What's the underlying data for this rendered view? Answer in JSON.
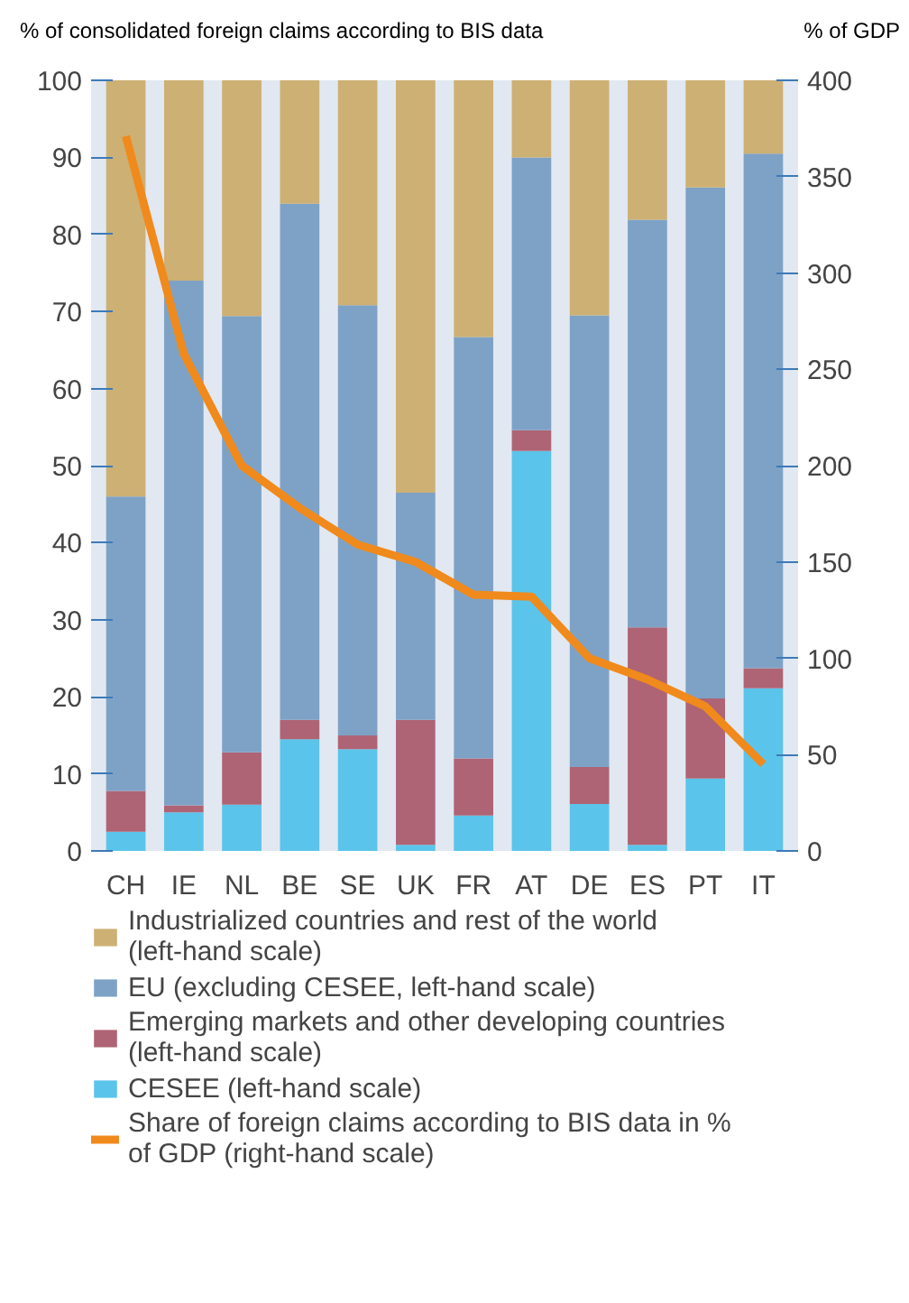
{
  "chart_data": {
    "type": "bar",
    "stacked": true,
    "ylabel": "% of consolidated foreign claims according to BIS data",
    "y2label": "% of GDP",
    "categories": [
      "CH",
      "IE",
      "NL",
      "BE",
      "SE",
      "UK",
      "FR",
      "AT",
      "DE",
      "ES",
      "PT",
      "IT"
    ],
    "series": [
      {
        "name": "CESEE (left-hand scale)",
        "color": "#5bc4ea",
        "values": [
          2.5,
          5,
          6,
          14.5,
          13.2,
          0.8,
          4.6,
          51.9,
          6.1,
          0.8,
          9.4,
          21.1
        ]
      },
      {
        "name": "Emerging markets and other developing countries (left-hand scale)",
        "color": "#ae6474",
        "values": [
          5.3,
          0.9,
          6.8,
          2.5,
          1.8,
          16.2,
          7.4,
          2.7,
          4.8,
          28.2,
          10.4,
          2.6
        ]
      },
      {
        "name": "EU (excluding CESEE, left-hand scale)",
        "color": "#7ea2c6",
        "values": [
          38.2,
          68.1,
          56.6,
          67,
          55.8,
          29.5,
          54.7,
          35.4,
          58.6,
          52.9,
          66.3,
          66.8
        ]
      },
      {
        "name": "Industrialized countries and rest of the world (left-hand scale)",
        "color": "#cdb073",
        "values": [
          54,
          26,
          30.6,
          16,
          29.2,
          53.5,
          33.3,
          10,
          30.5,
          18.1,
          13.9,
          9.5
        ]
      },
      {
        "name": "Share of foreign claims according to BIS data in % of GDP (right-hand scale)",
        "type": "line",
        "axis": "y2",
        "color": "#f08a1c",
        "values": [
          371,
          258,
          200,
          178,
          159,
          150,
          133,
          132,
          100,
          89,
          75,
          45
        ]
      }
    ],
    "ylim": [
      0,
      100
    ],
    "yticks": [
      0,
      10,
      20,
      30,
      40,
      50,
      60,
      70,
      80,
      90,
      100
    ],
    "y2lim": [
      0,
      400
    ],
    "y2ticks": [
      0,
      50,
      100,
      150,
      200,
      250,
      300,
      350,
      400
    ],
    "legend": "bottom",
    "grid": false
  }
}
